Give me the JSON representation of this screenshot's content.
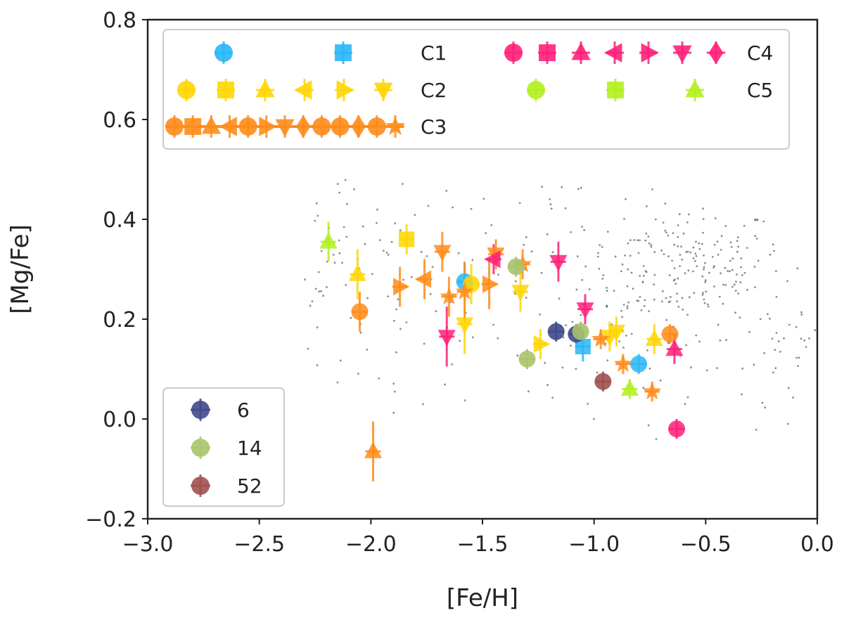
{
  "chart_data": {
    "type": "scatter",
    "xlabel": "[Fe/H]",
    "ylabel": "[Mg/Fe]",
    "xlim": [
      -3.0,
      0.0
    ],
    "ylim": [
      -0.2,
      0.8
    ],
    "xticks": [
      -3.0,
      -2.5,
      -2.0,
      -1.5,
      -1.0,
      -0.5,
      0.0
    ],
    "xtick_labels": [
      "−3.0",
      "−2.5",
      "−2.0",
      "−1.5",
      "−1.0",
      "−0.5",
      "0.0"
    ],
    "yticks": [
      -0.2,
      0.0,
      0.2,
      0.4,
      0.6,
      0.8
    ],
    "ytick_labels": [
      "−0.2",
      "0.0",
      "0.2",
      "0.4",
      "0.6",
      "0.8"
    ],
    "colors": {
      "C1": "#29b6f6",
      "C2": "#ffd600",
      "C3": "#ff8c1a",
      "C4": "#ff1f7a",
      "C5": "#b2f01e",
      "g6": "#3f4a8a",
      "g14": "#a9c46c",
      "g52": "#a05050",
      "field": "#666666"
    },
    "legend_top": {
      "placement": "top",
      "rows": [
        {
          "label": "C1",
          "color_key": "C1",
          "markers": [
            "circle",
            "square"
          ]
        },
        {
          "label": "C2",
          "color_key": "C2",
          "markers": [
            "circle",
            "square",
            "triangle-up",
            "triangle-left",
            "triangle-right",
            "triangle-down"
          ]
        },
        {
          "label": "C3",
          "color_key": "C3",
          "markers": [
            "circle",
            "square",
            "triangle-up",
            "triangle-left",
            "circle",
            "triangle-right",
            "triangle-down",
            "diamond",
            "circle",
            "circle",
            "diamond",
            "circle",
            "star"
          ]
        },
        {
          "label": "C4",
          "color_key": "C4",
          "markers": [
            "circle",
            "square",
            "triangle-up",
            "triangle-left",
            "triangle-right",
            "triangle-down",
            "diamond"
          ]
        },
        {
          "label": "C5",
          "color_key": "C5",
          "markers": [
            "circle",
            "square",
            "triangle-up"
          ]
        }
      ]
    },
    "legend_bottom": {
      "placement": "lower-left",
      "entries": [
        {
          "label": "6",
          "color_key": "g6"
        },
        {
          "label": "14",
          "color_key": "g14"
        },
        {
          "label": "52",
          "color_key": "g52"
        }
      ]
    },
    "series": [
      {
        "name": "C1",
        "color_key": "C1",
        "points": [
          {
            "x": -1.58,
            "y": 0.275,
            "m": "circle",
            "ey": 0.04
          },
          {
            "x": -1.05,
            "y": 0.145,
            "m": "square",
            "ey": 0.03
          },
          {
            "x": -0.8,
            "y": 0.11,
            "m": "circle",
            "ey": 0.02
          }
        ]
      },
      {
        "name": "C2",
        "color_key": "C2",
        "points": [
          {
            "x": -1.84,
            "y": 0.36,
            "m": "square",
            "ey": 0.03
          },
          {
            "x": -2.06,
            "y": 0.29,
            "m": "triangle-up",
            "ey": 0.05
          },
          {
            "x": -1.55,
            "y": 0.27,
            "m": "circle",
            "ey": 0.04
          },
          {
            "x": -1.58,
            "y": 0.19,
            "m": "triangle-down",
            "ey": 0.06
          },
          {
            "x": -1.33,
            "y": 0.255,
            "m": "triangle-down",
            "ey": 0.04
          },
          {
            "x": -1.24,
            "y": 0.15,
            "m": "triangle-right",
            "ey": 0.03
          },
          {
            "x": -0.93,
            "y": 0.165,
            "m": "triangle-down",
            "ey": 0.03
          },
          {
            "x": -0.9,
            "y": 0.175,
            "m": "triangle-down",
            "ey": 0.03
          },
          {
            "x": -0.73,
            "y": 0.16,
            "m": "triangle-up",
            "ey": 0.03
          }
        ]
      },
      {
        "name": "C3",
        "color_key": "C3",
        "points": [
          {
            "x": -1.68,
            "y": 0.335,
            "m": "triangle-down",
            "ey": 0.04
          },
          {
            "x": -1.87,
            "y": 0.265,
            "m": "triangle-right",
            "ey": 0.04
          },
          {
            "x": -1.76,
            "y": 0.28,
            "m": "triangle-left",
            "ey": 0.04
          },
          {
            "x": -1.47,
            "y": 0.27,
            "m": "triangle-right",
            "ey": 0.05
          },
          {
            "x": -1.58,
            "y": 0.255,
            "m": "star",
            "ey": 0.06
          },
          {
            "x": -1.65,
            "y": 0.245,
            "m": "star",
            "ey": 0.04
          },
          {
            "x": -1.32,
            "y": 0.31,
            "m": "star",
            "ey": 0.03
          },
          {
            "x": -1.44,
            "y": 0.33,
            "m": "triangle-down",
            "ey": 0.03
          },
          {
            "x": -2.05,
            "y": 0.215,
            "m": "circle",
            "ey": 0.04
          },
          {
            "x": -1.99,
            "y": -0.065,
            "m": "triangle-up",
            "ey": 0.06
          },
          {
            "x": -0.97,
            "y": 0.16,
            "m": "star",
            "ey": 0.02
          },
          {
            "x": -0.87,
            "y": 0.11,
            "m": "star",
            "ey": 0.02
          },
          {
            "x": -0.74,
            "y": 0.055,
            "m": "star",
            "ey": 0.02
          },
          {
            "x": -0.66,
            "y": 0.17,
            "m": "circle",
            "ey": 0.02
          }
        ]
      },
      {
        "name": "C4",
        "color_key": "C4",
        "points": [
          {
            "x": -1.66,
            "y": 0.165,
            "m": "triangle-down",
            "ey": 0.06
          },
          {
            "x": -1.45,
            "y": 0.32,
            "m": "triangle-left",
            "ey": 0.03
          },
          {
            "x": -1.16,
            "y": 0.315,
            "m": "triangle-down",
            "ey": 0.04
          },
          {
            "x": -1.04,
            "y": 0.22,
            "m": "triangle-down",
            "ey": 0.03
          },
          {
            "x": -0.64,
            "y": 0.14,
            "m": "triangle-up",
            "ey": 0.03
          },
          {
            "x": -0.63,
            "y": -0.02,
            "m": "circle",
            "ey": 0.02
          }
        ]
      },
      {
        "name": "C5",
        "color_key": "C5",
        "points": [
          {
            "x": -2.19,
            "y": 0.355,
            "m": "triangle-up",
            "ey": 0.04
          },
          {
            "x": -0.84,
            "y": 0.06,
            "m": "triangle-up",
            "ey": 0.02
          }
        ]
      },
      {
        "name": "6",
        "color_key": "g6",
        "points": [
          {
            "x": -1.17,
            "y": 0.175,
            "m": "circle",
            "ey": 0.02
          },
          {
            "x": -1.08,
            "y": 0.17,
            "m": "circle",
            "ey": 0.02
          }
        ]
      },
      {
        "name": "14",
        "color_key": "g14",
        "points": [
          {
            "x": -1.3,
            "y": 0.12,
            "m": "circle",
            "ey": 0.02
          },
          {
            "x": -1.35,
            "y": 0.305,
            "m": "circle",
            "ey": 0.02
          },
          {
            "x": -1.06,
            "y": 0.175,
            "m": "circle",
            "ey": 0.02
          }
        ]
      },
      {
        "name": "52",
        "color_key": "g52",
        "points": [
          {
            "x": -0.96,
            "y": 0.075,
            "m": "circle",
            "ey": 0.02
          }
        ]
      }
    ],
    "field_stars": {
      "description_count": 420,
      "cluster_center": [
        -0.6,
        0.31
      ],
      "x_range": [
        -2.3,
        0.0
      ],
      "y_range": [
        -0.1,
        0.51
      ]
    }
  }
}
